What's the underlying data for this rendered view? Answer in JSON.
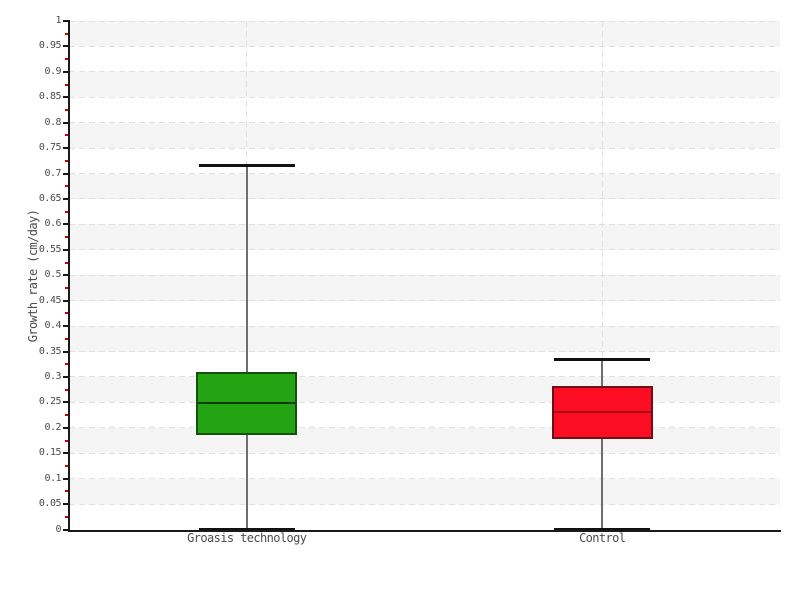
{
  "chart_data": {
    "type": "boxplot",
    "title": "",
    "ylabel": "Growth rate (cm/day)",
    "xlabel": "",
    "ylim": [
      0,
      1
    ],
    "ytick_step": 0.05,
    "yminortick_step": 0.025,
    "yticks": [
      "0",
      "0.05",
      "0.1",
      "0.15",
      "0.2",
      "0.25",
      "0.3",
      "0.35",
      "0.4",
      "0.45",
      "0.5",
      "0.55",
      "0.6",
      "0.65",
      "0.7",
      "0.75",
      "0.8",
      "0.85",
      "0.9",
      "0.95",
      "1"
    ],
    "categories": [
      "Groasis technology",
      "Control"
    ],
    "series": [
      {
        "name": "Groasis technology",
        "min": 0,
        "q1": 0.186,
        "median": 0.248,
        "q3": 0.31,
        "max": 0.715,
        "fill": "#25a413",
        "border": "#14520b",
        "median_color": "#0c3a06"
      },
      {
        "name": "Control",
        "min": 0,
        "q1": 0.177,
        "median": 0.231,
        "q3": 0.283,
        "max": 0.335,
        "fill": "#fb0e23",
        "border": "#6e1016",
        "median_color": "#a50d18"
      }
    ],
    "layout": {
      "legend": "none",
      "grid_horizontal_dashed": true,
      "grid_vertical_dashed_at_categories": true,
      "alternating_bands": true
    },
    "colors": {
      "background": "#ffffff",
      "band_gray": "#f5f5f5",
      "gridline": "#e0e0e0",
      "axis": "#1a1a1a",
      "major_tick": "#1a1a1a",
      "minor_tick": "#cc0000",
      "tick_label": "#4d4d4d",
      "whisker": "#6e6e6e",
      "whisker_cap": "#111111"
    }
  }
}
